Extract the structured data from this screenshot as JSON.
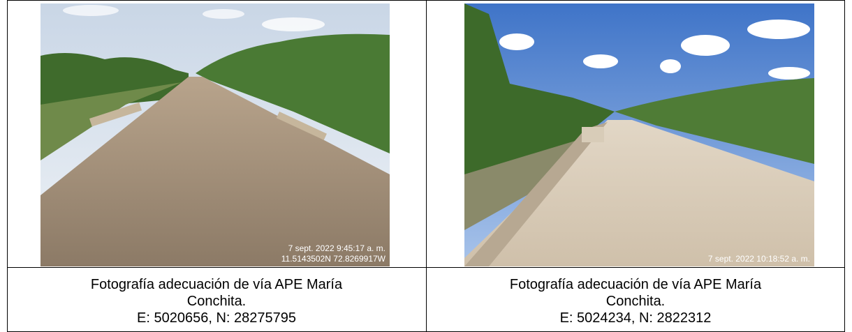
{
  "table": {
    "photos": [
      {
        "overlay": [
          "7 sept. 2022 9:45:17 a. m.",
          "11.5143502N 72.8269917W"
        ]
      },
      {
        "overlay": [
          "7 sept. 2022 10:18:52 a. m."
        ]
      }
    ],
    "captions": [
      [
        "Fotografía adecuación de vía APE María",
        "Conchita.",
        "E: 5020656, N: 28275795"
      ],
      [
        "Fotografía adecuación de vía APE María",
        "Conchita.",
        "E: 5024234, N: 2822312"
      ]
    ]
  }
}
